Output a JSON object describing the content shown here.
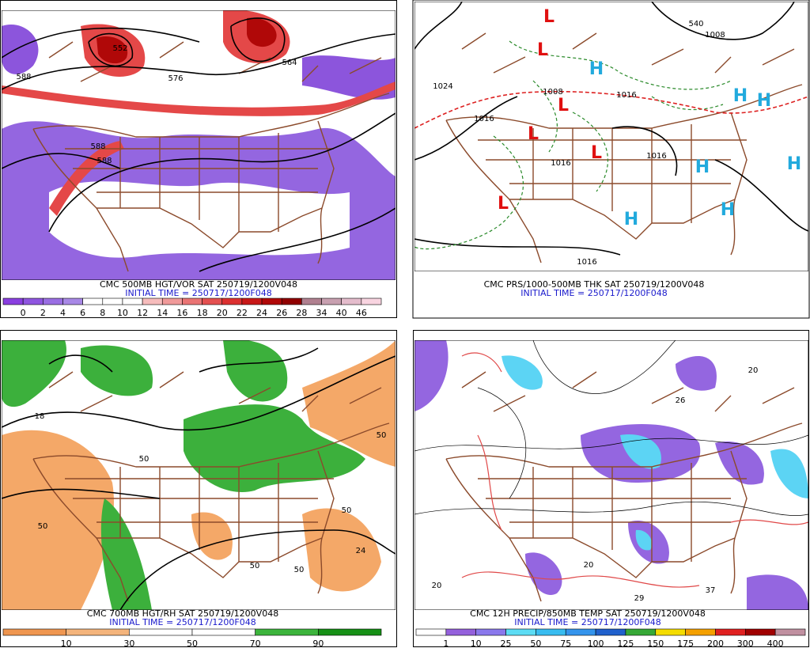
{
  "panels": [
    {
      "caption": "CMC 500MB HGT/VOR SAT 250719/1200V048",
      "initial_time": "INITIAL TIME = 250717/1200F048",
      "colorbar": {
        "labels": [
          "0",
          "2",
          "4",
          "6",
          "8",
          "10",
          "12",
          "14",
          "16",
          "18",
          "20",
          "22",
          "24",
          "26",
          "28",
          "34",
          "40",
          "46"
        ],
        "colors": [
          "#8a3fe0",
          "#8f55e0",
          "#9a6ee3",
          "#a888e6",
          "#ffffff",
          "#ffffff",
          "#ffffff",
          "#f6bcbc",
          "#f09a9a",
          "#ea7474",
          "#e45050",
          "#dc3030",
          "#c81818",
          "#b00808",
          "#900000",
          "#b08090",
          "#c8a0b0",
          "#e4bccc",
          "#f8d4e0"
        ]
      },
      "map_labels": [
        "588",
        "576",
        "564",
        "588",
        "588",
        "552"
      ]
    },
    {
      "caption": "CMC PRS/1000-500MB THK SAT 250719/1200V048",
      "initial_time": "INITIAL TIME = 250717/1200F048",
      "map_labels": [
        "1024",
        "1016",
        "1008",
        "1016",
        "1016",
        "1016",
        "1008",
        "1016",
        "540",
        "L",
        "L",
        "L",
        "L",
        "L",
        "L",
        "H",
        "H",
        "H",
        "H",
        "H",
        "H",
        "H"
      ]
    },
    {
      "caption": "CMC 700MB HGT/RH SAT 250719/1200V048",
      "initial_time": "INITIAL TIME = 250717/1200F048",
      "colorbar": {
        "labels": [
          "10",
          "30",
          "50",
          "70",
          "90"
        ],
        "colors": [
          "#ef9650",
          "#f4b47c",
          "#ffffff",
          "#ffffff",
          "#3cb43c",
          "#169016"
        ]
      },
      "map_labels": [
        "50",
        "50",
        "50",
        "50",
        "50",
        "50",
        "18",
        "24"
      ]
    },
    {
      "caption": "CMC 12H PRECIP/850MB TEMP SAT 250719/1200V048",
      "initial_time": "INITIAL TIME = 250717/1200F048",
      "colorbar": {
        "labels": [
          "1",
          "10",
          "25",
          "50",
          "75",
          "100",
          "125",
          "150",
          "175",
          "200",
          "300",
          "400"
        ],
        "colors": [
          "#ffffff",
          "#9460dc",
          "#8a78ec",
          "#5cdcf4",
          "#38bcf0",
          "#3494ec",
          "#2060cc",
          "#36a836",
          "#f4dc00",
          "#f4a000",
          "#e02020",
          "#a00000",
          "#c090a0"
        ]
      },
      "map_labels": [
        "20",
        "20",
        "20",
        "26",
        "29",
        "37"
      ]
    }
  ]
}
